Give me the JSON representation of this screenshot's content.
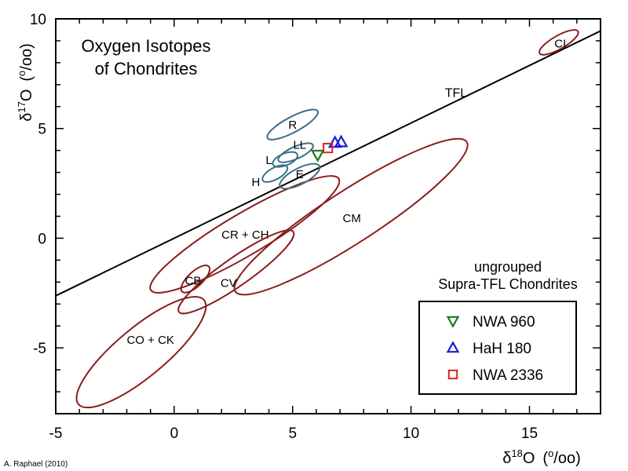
{
  "chart_data": {
    "type": "scatter",
    "title_lines": [
      "Oxygen Isotopes",
      "of Chondrites"
    ],
    "xlabel": {
      "delta": "δ",
      "sup": "18",
      "main": "O",
      "unit_open": "(",
      "unit_sup": "o",
      "unit_sub": "/oo",
      "unit_close": ")"
    },
    "ylabel": {
      "delta": "δ",
      "sup": "17",
      "main": "O",
      "unit_open": "(",
      "unit_sup": "o",
      "unit_sub": "/oo",
      "unit_close": ")"
    },
    "xlim": [
      -5,
      18
    ],
    "ylim": [
      -8,
      10
    ],
    "x_ticks": [
      "-5",
      "0",
      "5",
      "10",
      "15"
    ],
    "y_ticks": [
      "-5",
      "0",
      "5",
      "10"
    ],
    "minor_tick_step": 1,
    "grid": false,
    "colors": {
      "carbonaceous": "#8b1c1c",
      "ordinary": "#3b6f86",
      "line": "#000000"
    },
    "reference_line": {
      "label": "TFL",
      "slope": 0.525,
      "intercept": 0.0,
      "label_at": [
        11.9,
        6.65
      ]
    },
    "fields": [
      {
        "label": "CI",
        "group": "carbonaceous",
        "p1": [
          15.43,
          8.43
        ],
        "p2": [
          17.05,
          9.43
        ],
        "aspect": 0.3,
        "label_at": [
          16.3,
          8.9
        ]
      },
      {
        "label": "CM",
        "group": "carbonaceous",
        "p1": [
          2.58,
          -2.43
        ],
        "p2": [
          12.35,
          4.39
        ],
        "aspect": 0.19,
        "label_at": [
          7.5,
          0.95
        ]
      },
      {
        "label": "CR + CH",
        "group": "carbonaceous",
        "p1": [
          -0.99,
          -2.36
        ],
        "p2": [
          6.95,
          2.71
        ],
        "aspect": 0.19,
        "label_at": [
          3.0,
          0.2
        ]
      },
      {
        "label": "CV",
        "group": "carbonaceous",
        "p1": [
          0.2,
          -3.36
        ],
        "p2": [
          5.03,
          0.29
        ],
        "aspect": 0.2,
        "label_at": [
          2.3,
          -2.0
        ]
      },
      {
        "label": "CB",
        "group": "carbonaceous",
        "p1": [
          0.33,
          -2.43
        ],
        "p2": [
          1.46,
          -1.29
        ],
        "aspect": 0.4,
        "label_at": [
          0.8,
          -1.9
        ]
      },
      {
        "label": "CO + CK",
        "group": "carbonaceous",
        "p1": [
          -4.04,
          -7.57
        ],
        "p2": [
          1.26,
          -2.82
        ],
        "aspect": 0.3,
        "label_at": [
          -1.0,
          -4.6
        ]
      },
      {
        "label": "R",
        "group": "ordinary",
        "p1": [
          3.94,
          4.57
        ],
        "p2": [
          6.06,
          5.79
        ],
        "aspect": 0.27,
        "label_at": [
          5.0,
          5.2
        ]
      },
      {
        "label": "LL",
        "group": "ordinary",
        "p1": [
          4.4,
          3.54
        ],
        "p2": [
          5.86,
          4.25
        ],
        "aspect": 0.32,
        "label_at": [
          5.3,
          4.3
        ]
      },
      {
        "label": "L",
        "group": "ordinary",
        "p1": [
          4.17,
          3.36
        ],
        "p2": [
          5.2,
          3.82
        ],
        "aspect": 0.45,
        "label_at": [
          4.0,
          3.6
        ]
      },
      {
        "label": "H",
        "group": "ordinary",
        "p1": [
          3.74,
          2.64
        ],
        "p2": [
          4.77,
          3.25
        ],
        "aspect": 0.42,
        "label_at": [
          3.45,
          2.6
        ]
      },
      {
        "label": "E",
        "group": "ordinary",
        "p1": [
          4.47,
          2.36
        ],
        "p2": [
          6.13,
          3.29
        ],
        "aspect": 0.36,
        "label_at": [
          5.3,
          2.95
        ]
      }
    ],
    "legend": {
      "title_lines": [
        "ungrouped",
        "Supra-TFL Chondrites"
      ],
      "placement": "bottom-right"
    },
    "series": [
      {
        "name": "NWA 960",
        "marker": "triangle-down",
        "color": "#1a7a1a",
        "points": [
          [
            6.06,
            3.79
          ]
        ]
      },
      {
        "name": "HaH 180",
        "marker": "triangle-up",
        "color": "#1a1adc",
        "points": [
          [
            6.79,
            4.36
          ],
          [
            7.05,
            4.39
          ]
        ]
      },
      {
        "name": "NWA 2336",
        "marker": "square",
        "color": "#e02020",
        "points": [
          [
            6.49,
            4.11
          ]
        ]
      }
    ],
    "credit": "A. Raphael (2010)"
  }
}
